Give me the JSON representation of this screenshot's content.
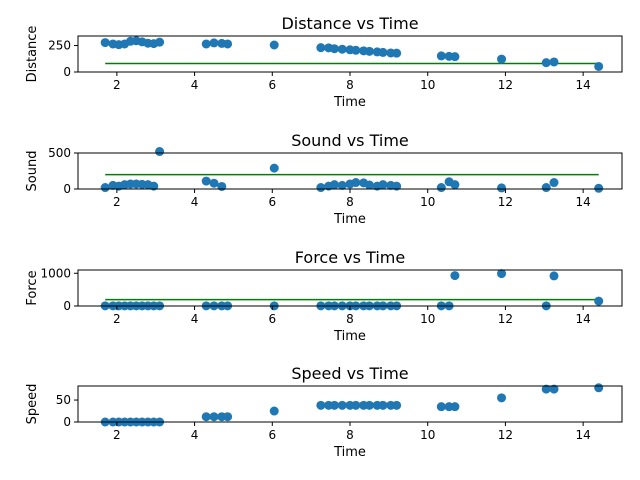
{
  "chart_data": [
    {
      "type": "scatter",
      "title": "Distance vs Time",
      "xlabel": "Time",
      "ylabel": "Distance",
      "xlim": [
        1.0,
        15.0
      ],
      "ylim": [
        0,
        340
      ],
      "xticks": [
        2,
        4,
        6,
        8,
        10,
        12,
        14
      ],
      "yticks": [
        0,
        250
      ],
      "colors": {
        "points": "#1f77b4",
        "fit": "#008000"
      },
      "points": {
        "x": [
          1.7,
          1.9,
          2.05,
          2.2,
          2.35,
          2.5,
          2.65,
          2.8,
          2.95,
          3.1,
          4.3,
          4.5,
          4.7,
          4.85,
          6.05,
          7.25,
          7.45,
          7.6,
          7.8,
          8.0,
          8.15,
          8.35,
          8.5,
          8.7,
          8.85,
          9.05,
          9.2,
          10.35,
          10.55,
          10.7,
          11.9,
          13.05,
          13.25,
          14.4
        ],
        "y": [
          278,
          265,
          258,
          265,
          290,
          295,
          285,
          272,
          268,
          282,
          265,
          275,
          270,
          265,
          255,
          230,
          228,
          220,
          215,
          210,
          205,
          200,
          195,
          190,
          185,
          180,
          178,
          152,
          148,
          145,
          122,
          88,
          95,
          52
        ]
      },
      "fit_line": {
        "x": [
          1.7,
          14.4
        ],
        "y": [
          80,
          80
        ]
      }
    },
    {
      "type": "scatter",
      "title": "Sound vs Time",
      "xlabel": "Time",
      "ylabel": "Sound",
      "xlim": [
        1.0,
        15.0
      ],
      "ylim": [
        0,
        500
      ],
      "xticks": [
        2,
        4,
        6,
        8,
        10,
        12,
        14
      ],
      "yticks": [
        0,
        500
      ],
      "colors": {
        "points": "#1f77b4",
        "fit": "#008000"
      },
      "points": {
        "x": [
          1.7,
          1.9,
          2.05,
          2.2,
          2.35,
          2.5,
          2.65,
          2.8,
          2.95,
          3.1,
          4.3,
          4.5,
          4.7,
          6.05,
          7.25,
          7.45,
          7.6,
          7.8,
          8.0,
          8.15,
          8.35,
          8.5,
          8.7,
          8.85,
          9.05,
          9.2,
          10.35,
          10.55,
          10.7,
          11.9,
          13.05,
          13.25,
          14.4
        ],
        "y": [
          20,
          50,
          40,
          60,
          70,
          70,
          65,
          60,
          40,
          520,
          110,
          80,
          35,
          290,
          20,
          40,
          60,
          50,
          70,
          90,
          85,
          55,
          40,
          60,
          50,
          40,
          20,
          100,
          60,
          15,
          20,
          90,
          10
        ]
      },
      "fit_line": {
        "x": [
          1.7,
          14.4
        ],
        "y": [
          200,
          200
        ]
      }
    },
    {
      "type": "scatter",
      "title": "Force vs Time",
      "xlabel": "Time",
      "ylabel": "Force",
      "xlim": [
        1.0,
        15.0
      ],
      "ylim": [
        0,
        1100
      ],
      "xticks": [
        2,
        4,
        6,
        8,
        10,
        12,
        14
      ],
      "yticks": [
        0,
        1000
      ],
      "colors": {
        "points": "#1f77b4",
        "fit": "#008000"
      },
      "points": {
        "x": [
          1.7,
          1.9,
          2.05,
          2.2,
          2.35,
          2.5,
          2.65,
          2.8,
          2.95,
          3.1,
          4.3,
          4.5,
          4.7,
          4.85,
          6.05,
          7.25,
          7.45,
          7.6,
          7.8,
          8.0,
          8.15,
          8.35,
          8.5,
          8.7,
          8.85,
          9.05,
          9.2,
          10.35,
          10.55,
          10.7,
          11.9,
          13.05,
          13.25,
          14.4
        ],
        "y": [
          5,
          5,
          5,
          5,
          5,
          5,
          5,
          5,
          5,
          5,
          5,
          5,
          5,
          5,
          5,
          5,
          5,
          5,
          5,
          5,
          5,
          5,
          5,
          5,
          5,
          5,
          5,
          5,
          5,
          930,
          990,
          5,
          920,
          150
        ]
      },
      "fit_line": {
        "x": [
          1.7,
          14.4
        ],
        "y": [
          195,
          195
        ]
      }
    },
    {
      "type": "scatter",
      "title": "Speed vs Time",
      "xlabel": "Time",
      "ylabel": "Speed",
      "xlim": [
        1.0,
        15.0
      ],
      "ylim": [
        0,
        82
      ],
      "xticks": [
        2,
        4,
        6,
        8,
        10,
        12,
        14
      ],
      "yticks": [
        0,
        50
      ],
      "colors": {
        "points": "#1f77b4",
        "fit": "#008000"
      },
      "points": {
        "x": [
          1.7,
          1.9,
          2.05,
          2.2,
          2.35,
          2.5,
          2.65,
          2.8,
          2.95,
          3.1,
          4.3,
          4.5,
          4.7,
          4.85,
          6.05,
          7.25,
          7.45,
          7.6,
          7.8,
          8.0,
          8.15,
          8.35,
          8.5,
          8.7,
          8.85,
          9.05,
          9.2,
          10.35,
          10.55,
          10.7,
          11.9,
          13.05,
          13.25,
          14.4
        ],
        "y": [
          0,
          0,
          0,
          0,
          0,
          0,
          0,
          0,
          0,
          0,
          12,
          12,
          12,
          12,
          25,
          38,
          38,
          38,
          38,
          38,
          38,
          38,
          38,
          38,
          38,
          38,
          38,
          35,
          35,
          35,
          55,
          75,
          75,
          78
        ]
      },
      "fit_line": null
    }
  ]
}
